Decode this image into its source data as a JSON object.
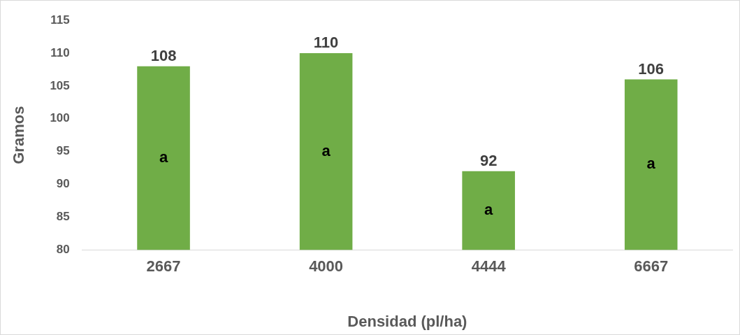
{
  "chart_data": {
    "type": "bar",
    "xlabel": "Densidad (pl/ha)",
    "ylabel": "Gramos",
    "categories": [
      "2667",
      "4000",
      "4444",
      "6667"
    ],
    "values": [
      108,
      110,
      92,
      106
    ],
    "color": "#70ad47",
    "ylim": [
      80,
      115
    ],
    "yticks": [
      80,
      85,
      90,
      95,
      100,
      105,
      110,
      115
    ],
    "grid": false,
    "data_labels": true,
    "annotations": [
      "a",
      "a",
      "a",
      "a"
    ]
  }
}
